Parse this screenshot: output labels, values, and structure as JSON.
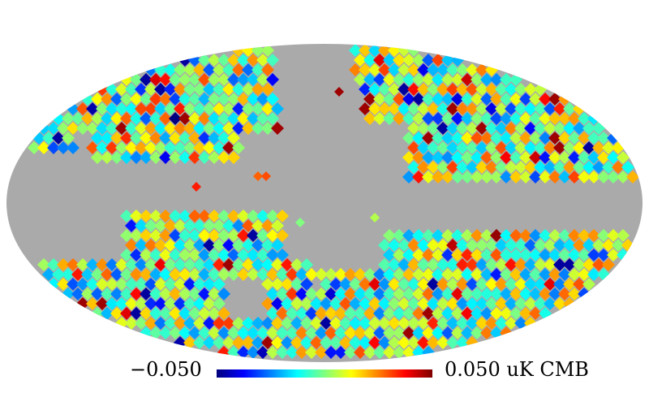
{
  "colorbar": {
    "min_label": "−0.050",
    "max_label": "0.050 uK CMB",
    "min_value": -0.05,
    "max_value": 0.05,
    "colormap": "jet",
    "colors": [
      "#00007f",
      "#0000ff",
      "#007fff",
      "#00ffff",
      "#7fff7f",
      "#ffff00",
      "#ff7f00",
      "#ff0000",
      "#7f0000"
    ]
  },
  "map": {
    "projection": "mollweide",
    "masked_color": "#aaaaaa",
    "background_color": "#ffffff"
  }
}
